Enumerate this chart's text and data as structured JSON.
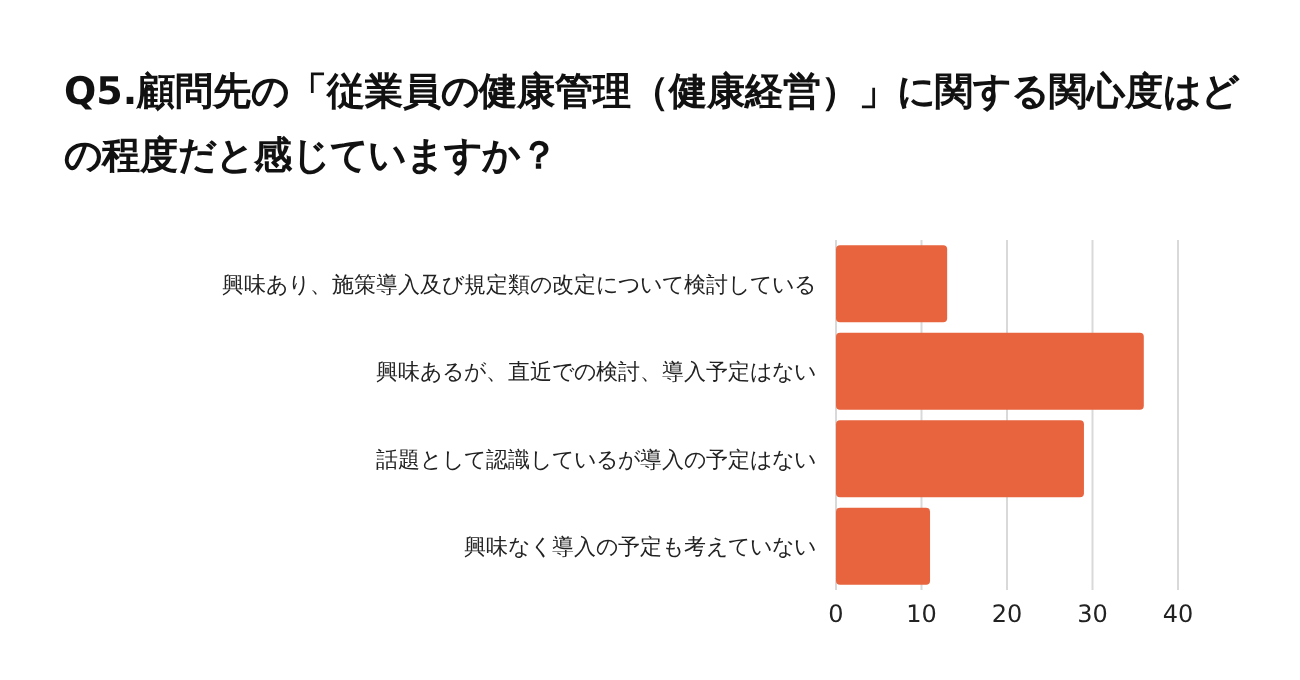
{
  "chart_data": {
    "type": "bar",
    "orientation": "horizontal",
    "title": "Q5.顧問先の「従業員の健康管理（健康経営）」に関する関心度はどの程度だと感じていますか？",
    "categories": [
      "興味あり、施策導入及び規定類の改定について検討している",
      "興味あるが、直近での検討、導入予定はない",
      "話題として認識しているが導入の予定はない",
      "興味なく導入の予定も考えていない"
    ],
    "values": [
      13,
      36,
      29,
      11
    ],
    "color": "#e8643f",
    "xlim": [
      0,
      40
    ],
    "xticks": [
      0,
      10,
      20,
      30,
      40
    ],
    "grid": "x"
  }
}
